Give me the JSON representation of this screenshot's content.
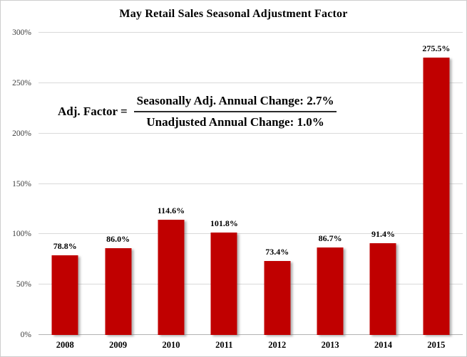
{
  "chart_data": {
    "type": "bar",
    "title": "May Retail Sales Seasonal Adjustment Factor",
    "categories": [
      "2008",
      "2009",
      "2010",
      "2011",
      "2012",
      "2013",
      "2014",
      "2015"
    ],
    "values": [
      78.8,
      86.0,
      114.6,
      101.8,
      73.4,
      86.7,
      91.4,
      275.5
    ],
    "value_labels": [
      "78.8%",
      "86.0%",
      "114.6%",
      "101.8%",
      "73.4%",
      "86.7%",
      "91.4%",
      "275.5%"
    ],
    "xlabel": "",
    "ylabel": "",
    "ylim": [
      0,
      300
    ],
    "ytick_step": 50,
    "ytick_labels": [
      "0%",
      "50%",
      "100%",
      "150%",
      "200%",
      "250%",
      "300%"
    ],
    "grid": true,
    "legend": "none",
    "bar_color": "#c00000"
  },
  "annotation": {
    "lhs": "Adj. Factor =",
    "numerator": "Seasonally Adj. Annual Change: 2.7%",
    "denominator": "Unadjusted Annual Change: 1.0%"
  },
  "colors": {
    "bar": "#c00000",
    "gridline": "#d9d9d9",
    "axis_line": "#b3b3b3",
    "text": "#000000",
    "frame_border": "#cdcdcd",
    "background": "#ffffff"
  }
}
